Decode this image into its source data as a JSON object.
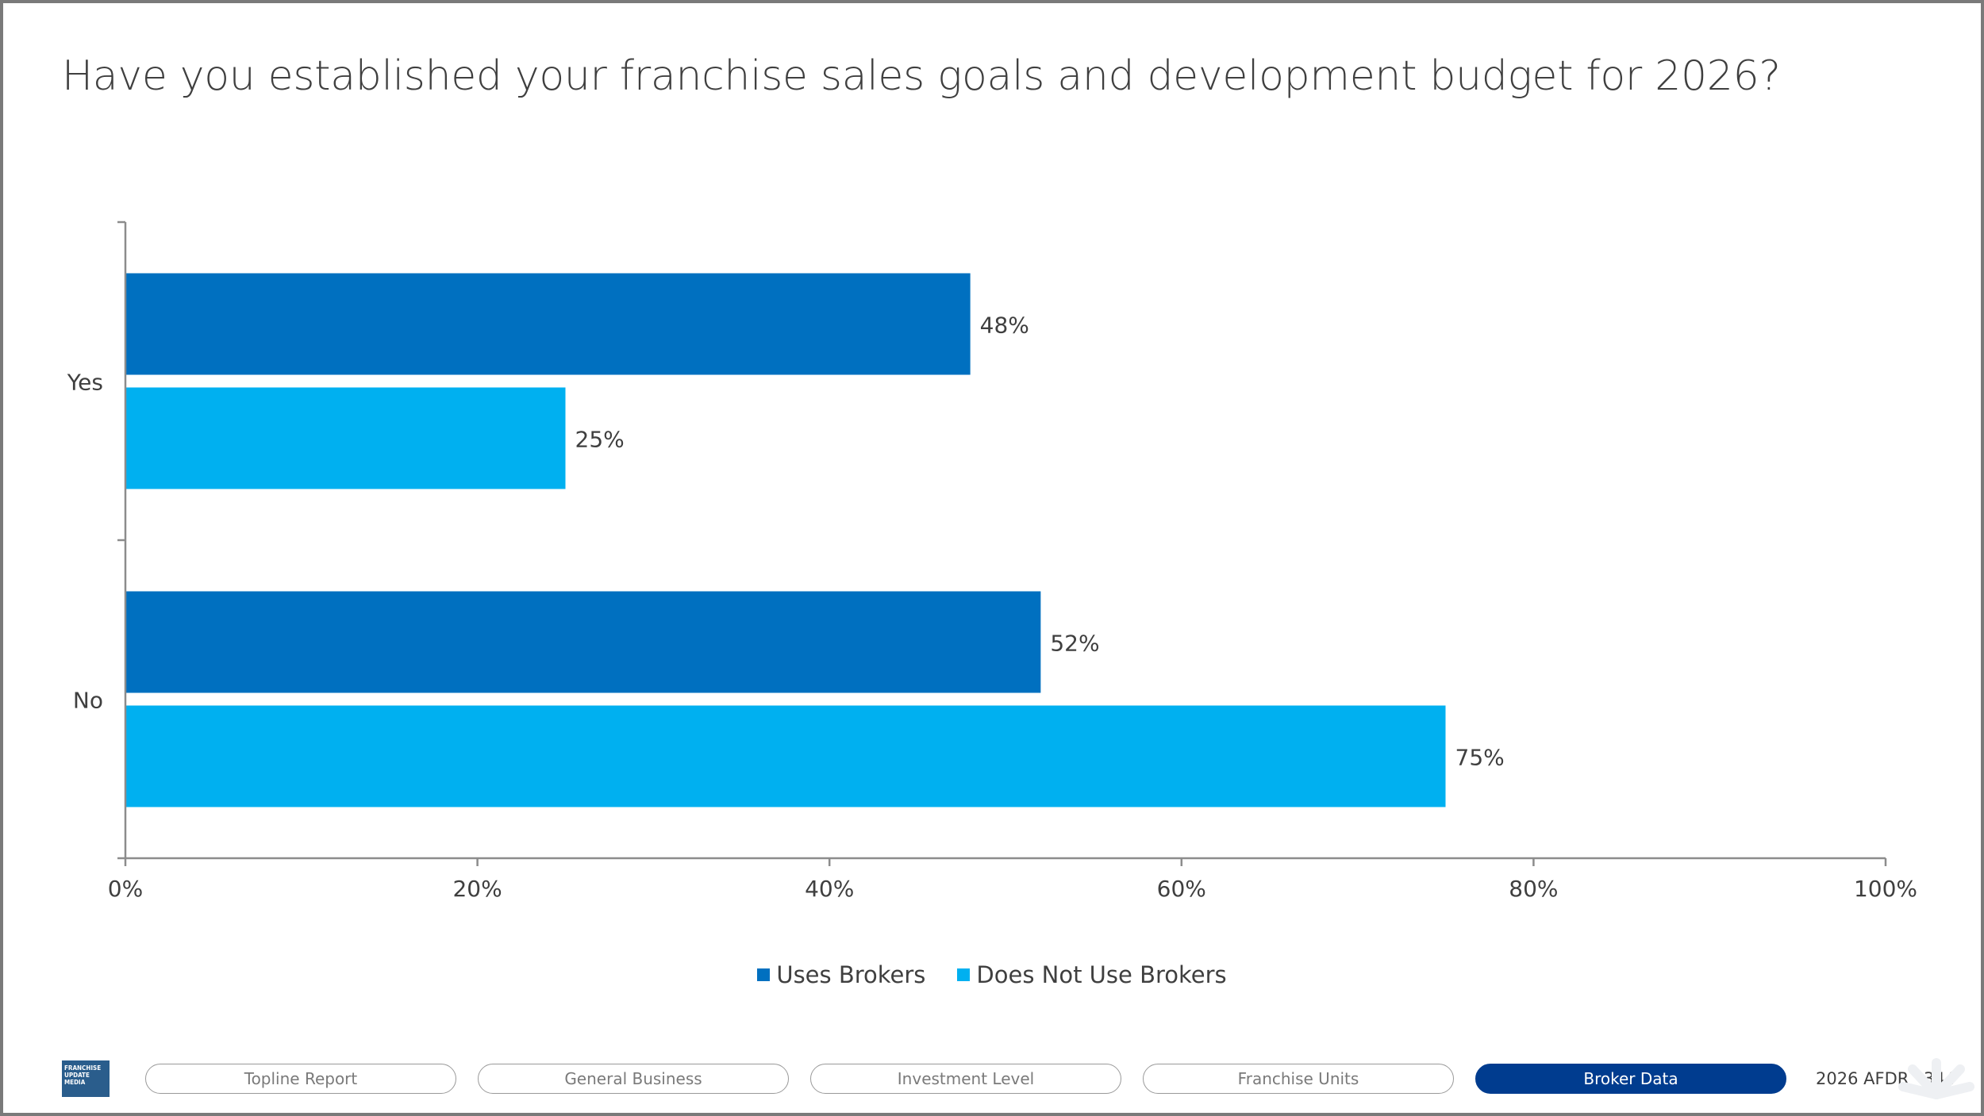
{
  "title": "Have you established your franchise sales goals and development budget for 2026?",
  "chart_data": {
    "type": "bar",
    "orientation": "horizontal",
    "categories": [
      "Yes",
      "No"
    ],
    "series": [
      {
        "name": "Uses Brokers",
        "values": [
          48,
          52
        ],
        "labels": [
          "48%",
          "52%"
        ],
        "color": "#0070c0"
      },
      {
        "name": "Does Not Use Brokers",
        "values": [
          25,
          75
        ],
        "labels": [
          "25%",
          "75%"
        ],
        "color": "#00b0f0"
      }
    ],
    "xlim": [
      0,
      100
    ],
    "x_ticks": [
      "0%",
      "20%",
      "40%",
      "60%",
      "80%",
      "100%"
    ],
    "grid": false,
    "legend_position": "bottom"
  },
  "footer": {
    "logo_text": [
      "FRANCHISE",
      "UPDATE",
      "MEDIA"
    ],
    "nav": [
      {
        "label": "Topline Report",
        "active": false
      },
      {
        "label": "General Business",
        "active": false
      },
      {
        "label": "Investment Level",
        "active": false
      },
      {
        "label": "Franchise Units",
        "active": false
      },
      {
        "label": "Broker Data",
        "active": true
      }
    ],
    "report_label": "2026 AFDR",
    "page_number": "344"
  }
}
